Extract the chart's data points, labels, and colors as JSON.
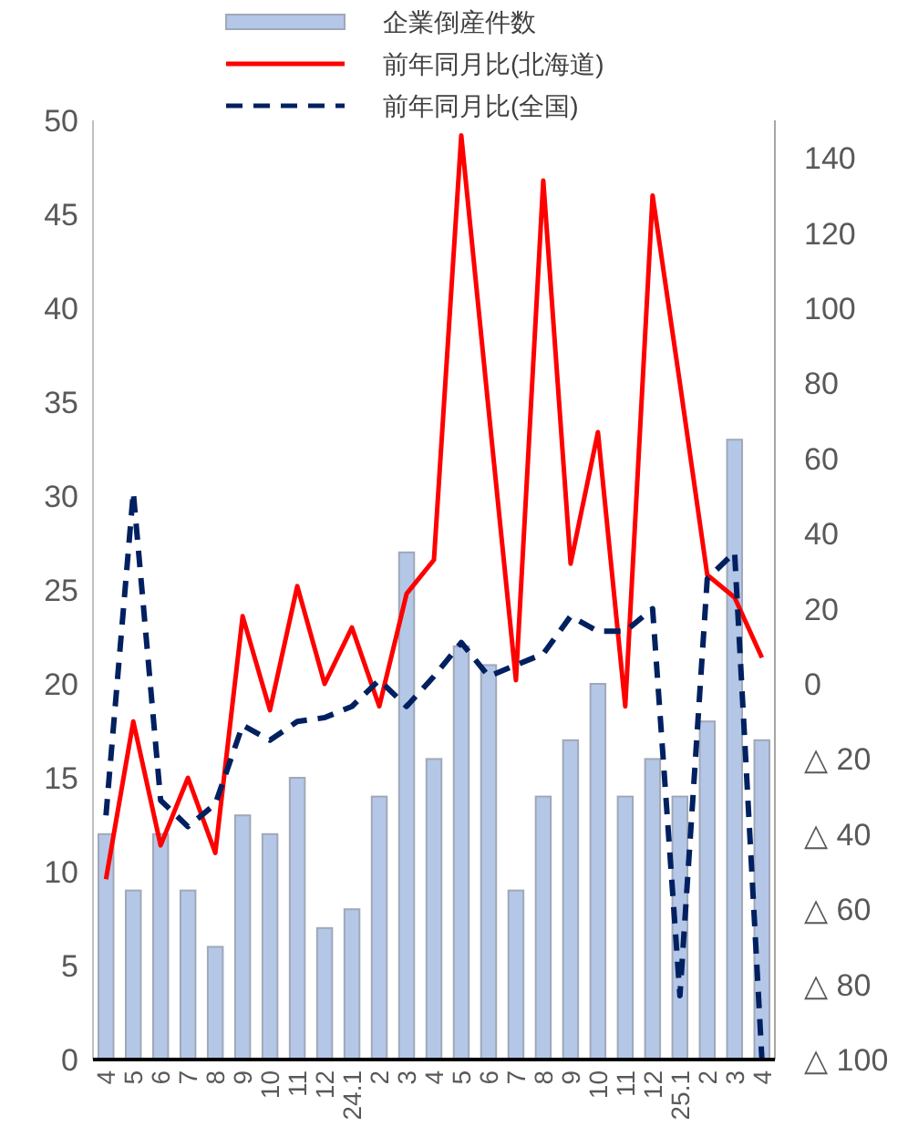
{
  "chart_data": {
    "type": "bar",
    "categories": [
      "4",
      "5",
      "6",
      "7",
      "8",
      "9",
      "10",
      "11",
      "12",
      "24.1",
      "2",
      "3",
      "4",
      "5",
      "6",
      "7",
      "8",
      "9",
      "10",
      "11",
      "12",
      "25.1",
      "2",
      "3",
      "4"
    ],
    "series": [
      {
        "name": "企業倒産件数",
        "color": "#b4c7e7",
        "values": [
          12,
          9,
          12,
          9,
          6,
          13,
          12,
          15,
          7,
          8,
          14,
          27,
          16,
          22,
          21,
          9,
          14,
          17,
          20,
          14,
          16,
          14,
          18,
          33,
          17
        ]
      },
      {
        "name": "前年同月比(北海道)",
        "type": "line",
        "axis": "y2",
        "color": "#ff0000",
        "line_style": "solid",
        "values": [
          -52,
          -10,
          -43,
          -25,
          -45,
          18,
          -7,
          26,
          0,
          15,
          -6,
          24,
          33,
          146,
          73,
          1,
          134,
          32,
          67,
          -6,
          130,
          80,
          29,
          23,
          7
        ]
      },
      {
        "name": "前年同月比(全国)",
        "type": "line",
        "axis": "y2",
        "color": "#002060",
        "line_style": "dashed",
        "values": [
          -35,
          51,
          -31,
          -38,
          -32,
          -11,
          -15,
          -10,
          -9,
          -6,
          1,
          -6,
          2,
          11,
          2,
          5,
          8,
          18,
          14,
          14,
          20,
          -83,
          28,
          35,
          -100
        ]
      }
    ],
    "ylim": [
      0,
      50
    ],
    "yticks": [
      0,
      5,
      10,
      15,
      20,
      25,
      30,
      35,
      40,
      45,
      50
    ],
    "y2lim": [
      -100,
      150
    ],
    "y2ticks": [
      {
        "value": -100,
        "label": "△ 100"
      },
      {
        "value": -80,
        "label": "△ 80"
      },
      {
        "value": -60,
        "label": "△ 60"
      },
      {
        "value": -40,
        "label": "△ 40"
      },
      {
        "value": -20,
        "label": "△ 20"
      },
      0,
      20,
      40,
      60,
      80,
      100,
      120,
      140
    ],
    "grid": false,
    "legend": "top",
    "marker": "none"
  }
}
